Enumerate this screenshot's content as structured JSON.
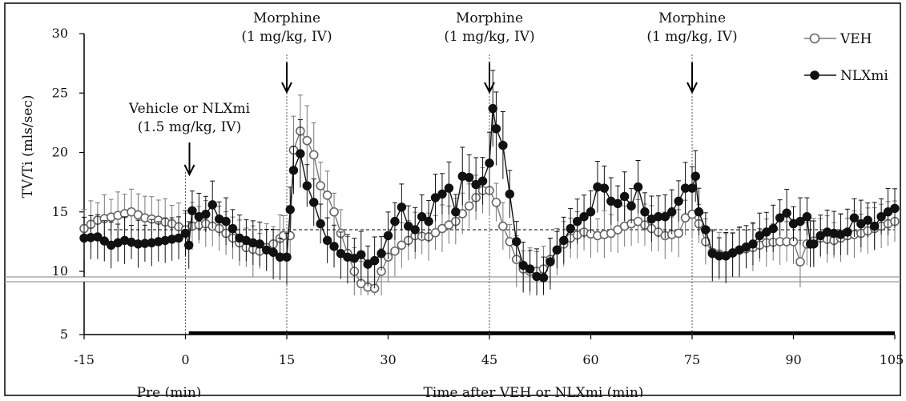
{
  "chart_data": {
    "type": "line",
    "title": "",
    "ylabel": "TV/Ti (mls/sec)",
    "xlabel_pre": "Pre (min)",
    "xlabel_post": "Time after VEH or NLXmi (min)",
    "xlim": [
      -15,
      105
    ],
    "ylim_upper_panel": [
      10,
      30
    ],
    "ylim_lower_panel": [
      5,
      9.5
    ],
    "x_ticks": [
      "-15",
      "0",
      "15",
      "30",
      "45",
      "60",
      "75",
      "90",
      "105"
    ],
    "y_ticks": [
      "5",
      "10",
      "15",
      "20",
      "25",
      "30"
    ],
    "grid": false,
    "legend_position": "top-right",
    "baseline_ref_line": 13.5,
    "annotations": [
      {
        "id": "veh",
        "lines": [
          "Vehicle or NLXmi",
          "(1.5 mg/kg, IV)"
        ],
        "x": 0
      },
      {
        "id": "m1",
        "lines": [
          "Morphine",
          "(1 mg/kg, IV)"
        ],
        "x": 15
      },
      {
        "id": "m2",
        "lines": [
          "Morphine",
          "(1 mg/kg, IV)"
        ],
        "x": 45
      },
      {
        "id": "m3",
        "lines": [
          "Morphine",
          "(1 mg/kg, IV)"
        ],
        "x": 75
      }
    ],
    "treatment_bar": [
      0.5,
      105
    ],
    "series": [
      {
        "name": "VEH",
        "marker": "open-circle",
        "color": "#777777",
        "anchors": [
          [
            -15,
            13.6
          ],
          [
            -13,
            14.3
          ],
          [
            -10,
            14.7
          ],
          [
            -8,
            15.0
          ],
          [
            -6,
            14.5
          ],
          [
            -4,
            14.3
          ],
          [
            -2,
            14.0
          ],
          [
            0,
            13.5
          ],
          [
            1,
            13.8
          ],
          [
            3,
            14.0
          ],
          [
            5,
            13.6
          ],
          [
            7,
            12.8
          ],
          [
            9,
            12.0
          ],
          [
            11,
            11.7
          ],
          [
            13,
            12.3
          ],
          [
            14.5,
            13.0
          ],
          [
            15.5,
            13.0
          ],
          [
            16,
            20.2
          ],
          [
            17,
            21.8
          ],
          [
            18,
            21.0
          ],
          [
            19,
            19.8
          ],
          [
            20,
            17.2
          ],
          [
            21,
            16.4
          ],
          [
            22,
            15.0
          ],
          [
            23,
            13.2
          ],
          [
            24,
            11.5
          ],
          [
            25,
            10.0
          ],
          [
            26,
            9.3
          ],
          [
            27,
            9.0
          ],
          [
            28,
            8.9
          ],
          [
            29,
            10.0
          ],
          [
            30,
            11.2
          ],
          [
            32,
            12.2
          ],
          [
            34,
            13.0
          ],
          [
            36,
            12.9
          ],
          [
            38,
            13.6
          ],
          [
            40,
            14.2
          ],
          [
            42,
            15.5
          ],
          [
            43,
            16.2
          ],
          [
            44,
            16.8
          ],
          [
            45,
            16.8
          ],
          [
            46,
            15.8
          ],
          [
            47,
            13.8
          ],
          [
            48,
            12.5
          ],
          [
            49,
            11.0
          ],
          [
            50,
            10.2
          ],
          [
            51,
            10.0
          ],
          [
            52,
            10.0
          ],
          [
            53,
            10.2
          ],
          [
            55,
            11.8
          ],
          [
            57,
            12.8
          ],
          [
            59,
            13.3
          ],
          [
            61,
            13.0
          ],
          [
            63,
            13.2
          ],
          [
            65,
            13.8
          ],
          [
            67,
            14.2
          ],
          [
            69,
            13.6
          ],
          [
            71,
            13.0
          ],
          [
            73,
            13.2
          ],
          [
            74,
            14.5
          ],
          [
            75,
            14.8
          ],
          [
            76,
            14.0
          ],
          [
            77,
            12.5
          ],
          [
            78,
            11.6
          ],
          [
            80,
            11.3
          ],
          [
            82,
            11.8
          ],
          [
            84,
            12.0
          ],
          [
            86,
            12.4
          ],
          [
            88,
            12.5
          ],
          [
            90,
            12.5
          ],
          [
            91,
            10.8
          ],
          [
            92,
            12.3
          ],
          [
            94,
            12.8
          ],
          [
            96,
            12.6
          ],
          [
            98,
            13.0
          ],
          [
            100,
            13.2
          ],
          [
            102,
            13.6
          ],
          [
            104,
            14.0
          ],
          [
            105,
            14.2
          ]
        ]
      },
      {
        "name": "NLXmi",
        "marker": "filled-circle",
        "color": "#111111",
        "anchors": [
          [
            -15,
            12.8
          ],
          [
            -13,
            12.9
          ],
          [
            -11,
            12.2
          ],
          [
            -9,
            12.6
          ],
          [
            -7,
            12.3
          ],
          [
            -5,
            12.4
          ],
          [
            -3,
            12.6
          ],
          [
            -1,
            12.8
          ],
          [
            0,
            13.2
          ],
          [
            0.5,
            12.2
          ],
          [
            1,
            15.1
          ],
          [
            2,
            14.6
          ],
          [
            3,
            14.8
          ],
          [
            4,
            15.6
          ],
          [
            5,
            14.4
          ],
          [
            6,
            14.2
          ],
          [
            7,
            13.6
          ],
          [
            8,
            12.8
          ],
          [
            9,
            12.6
          ],
          [
            10,
            12.4
          ],
          [
            11,
            12.3
          ],
          [
            12,
            11.8
          ],
          [
            13,
            11.6
          ],
          [
            14,
            11.2
          ],
          [
            15,
            11.2
          ],
          [
            15.5,
            15.2
          ],
          [
            16,
            18.5
          ],
          [
            17,
            19.9
          ],
          [
            18,
            17.2
          ],
          [
            19,
            15.8
          ],
          [
            20,
            14.0
          ],
          [
            21,
            12.6
          ],
          [
            22,
            12.1
          ],
          [
            23,
            11.5
          ],
          [
            24,
            11.2
          ],
          [
            25,
            11.1
          ],
          [
            26,
            11.4
          ],
          [
            27,
            10.6
          ],
          [
            28,
            10.9
          ],
          [
            29,
            11.5
          ],
          [
            30,
            13.0
          ],
          [
            31,
            14.2
          ],
          [
            32,
            15.4
          ],
          [
            33,
            13.8
          ],
          [
            34,
            13.5
          ],
          [
            35,
            14.6
          ],
          [
            36,
            14.2
          ],
          [
            37,
            16.2
          ],
          [
            38,
            16.5
          ],
          [
            39,
            17.0
          ],
          [
            40,
            15.0
          ],
          [
            41,
            18.0
          ],
          [
            42,
            17.9
          ],
          [
            43,
            17.3
          ],
          [
            44,
            17.6
          ],
          [
            45,
            19.1
          ],
          [
            45.5,
            23.7
          ],
          [
            46,
            22.0
          ],
          [
            47,
            20.6
          ],
          [
            48,
            16.5
          ],
          [
            49,
            12.5
          ],
          [
            50,
            10.5
          ],
          [
            51,
            10.2
          ],
          [
            52,
            9.9
          ],
          [
            53,
            9.8
          ],
          [
            54,
            10.8
          ],
          [
            55,
            11.8
          ],
          [
            56,
            12.6
          ],
          [
            57,
            13.6
          ],
          [
            58,
            14.2
          ],
          [
            59,
            14.6
          ],
          [
            60,
            15.0
          ],
          [
            61,
            17.1
          ],
          [
            62,
            17.0
          ],
          [
            63,
            15.9
          ],
          [
            64,
            15.7
          ],
          [
            65,
            16.3
          ],
          [
            66,
            15.5
          ],
          [
            67,
            17.1
          ],
          [
            68,
            15.0
          ],
          [
            69,
            14.4
          ],
          [
            70,
            14.6
          ],
          [
            71,
            14.6
          ],
          [
            72,
            15.0
          ],
          [
            73,
            15.9
          ],
          [
            74,
            17.0
          ],
          [
            75,
            17.0
          ],
          [
            75.5,
            18.0
          ],
          [
            76,
            15.0
          ],
          [
            77,
            13.5
          ],
          [
            78,
            11.5
          ],
          [
            79,
            11.3
          ],
          [
            80,
            11.3
          ],
          [
            82,
            11.8
          ],
          [
            84,
            12.3
          ],
          [
            85,
            13.0
          ],
          [
            86,
            13.3
          ],
          [
            87,
            13.6
          ],
          [
            88,
            14.5
          ],
          [
            89,
            14.9
          ],
          [
            90,
            14.0
          ],
          [
            91,
            14.2
          ],
          [
            92,
            14.6
          ],
          [
            92.5,
            12.3
          ],
          [
            93,
            12.3
          ],
          [
            94,
            13.0
          ],
          [
            95,
            13.3
          ],
          [
            96,
            13.2
          ],
          [
            97,
            13.1
          ],
          [
            98,
            13.3
          ],
          [
            99,
            14.5
          ],
          [
            100,
            14.0
          ],
          [
            101,
            14.3
          ],
          [
            102,
            13.8
          ],
          [
            103,
            14.6
          ],
          [
            104,
            15.0
          ],
          [
            105,
            15.3
          ]
        ]
      }
    ]
  }
}
